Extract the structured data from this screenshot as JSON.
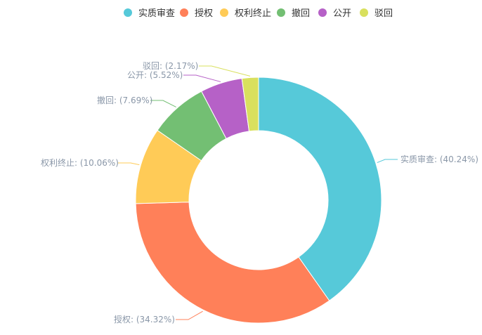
{
  "chart_data": {
    "type": "pie",
    "variant": "donut",
    "categories": [
      "实质审查",
      "授权",
      "权利终止",
      "撤回",
      "公开",
      "驳回"
    ],
    "values": [
      40.24,
      34.32,
      10.06,
      7.69,
      5.52,
      2.17
    ],
    "labels": [
      "实质审查: (40.24%)",
      "授权: (34.32%)",
      "权利终止: (10.06%)",
      "撤回: (7.69%)",
      "公开: (5.52%)",
      "驳回: (2.17%)"
    ],
    "colors": [
      "#56c9d9",
      "#ff8059",
      "#ffcb57",
      "#73bf73",
      "#b661c7",
      "#d9e05e"
    ],
    "legend_position": "top-center",
    "title": ""
  }
}
